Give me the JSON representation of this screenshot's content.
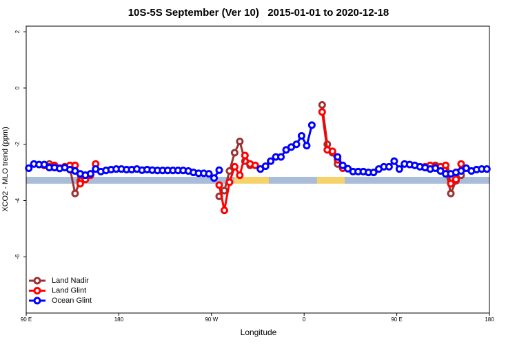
{
  "chart_data": {
    "type": "line",
    "title": "10S-5S September (Ver 10)   2015-01-01 to 2020-12-18",
    "x_label": "Longitude",
    "y_label": "XCO2 - MLO trend (ppm)",
    "xlim": [
      90,
      540
    ],
    "ylim": [
      -8,
      2.2
    ],
    "xticks": [
      {
        "value": 90,
        "label": "90 E"
      },
      180,
      {
        "value": 270,
        "label": "90 W"
      },
      {
        "value": 360,
        "label": "0"
      },
      {
        "value": 450,
        "label": "90 E"
      },
      {
        "value": 540,
        "label": "180"
      }
    ],
    "yticks": [
      2,
      0,
      -2,
      -4,
      -6
    ],
    "legend": "bottom-left",
    "series": [
      {
        "name": "Land Nadir",
        "color": "#993333",
        "x": [
          107.5,
          112.5,
          117.5,
          122.5,
          127.5,
          132.5,
          137.5,
          142.5,
          147.5,
          null,
          277.5,
          282.5,
          287.5,
          292.5,
          297.5,
          302.5,
          307.5,
          null,
          377.5,
          382.5,
          387.5,
          392.5,
          null,
          487.5,
          492.5,
          497.5,
          502.5,
          507.5,
          512.5
        ],
        "values": [
          -2.75,
          -2.7,
          -2.8,
          -2.85,
          -2.8,
          -2.85,
          -3.75,
          -3.3,
          -3.1,
          null,
          -3.85,
          -3.65,
          -2.95,
          -2.3,
          -1.9,
          -2.6,
          -2.75,
          null,
          -0.6,
          -2.0,
          -2.3,
          -2.7,
          null,
          -2.75,
          -2.85,
          -2.9,
          -3.75,
          -3.3,
          -3.1
        ]
      },
      {
        "name": "Land Glint",
        "color": "#ff0000",
        "x": [
          107.5,
          112.5,
          117.5,
          122.5,
          127.5,
          132.5,
          137.5,
          142.5,
          147.5,
          152.5,
          157.5,
          null,
          277.5,
          282.5,
          287.5,
          292.5,
          297.5,
          302.5,
          307.5,
          312.5,
          null,
          377.5,
          382.5,
          387.5,
          392.5,
          397.5,
          null,
          477.5,
          482.5,
          487.5,
          492.5,
          497.5,
          502.5,
          507.5,
          512.5
        ],
        "values": [
          -2.75,
          -2.8,
          -2.75,
          -2.85,
          -2.8,
          -2.75,
          -2.75,
          -3.4,
          -3.25,
          -3.1,
          -2.7,
          null,
          -3.45,
          -4.35,
          -3.35,
          -2.8,
          -3.1,
          -2.4,
          -2.7,
          -2.75,
          null,
          -0.85,
          -2.2,
          -2.25,
          -2.55,
          -2.85,
          null,
          -2.8,
          -2.75,
          -2.8,
          -2.8,
          -2.75,
          -3.4,
          -3.25,
          -2.7
        ]
      },
      {
        "name": "Ocean Glint",
        "color": "#0000ff",
        "x": [
          92.5,
          97.5,
          102.5,
          107.5,
          112.5,
          117.5,
          122.5,
          127.5,
          132.5,
          137.5,
          142.5,
          147.5,
          152.5,
          157.5,
          162.5,
          167.5,
          172.5,
          177.5,
          182.5,
          187.5,
          192.5,
          197.5,
          202.5,
          207.5,
          212.5,
          217.5,
          222.5,
          227.5,
          232.5,
          237.5,
          242.5,
          247.5,
          252.5,
          257.5,
          262.5,
          267.5,
          272.5,
          277.5,
          null,
          317.5,
          322.5,
          327.5,
          332.5,
          337.5,
          342.5,
          347.5,
          352.5,
          357.5,
          362.5,
          367.5,
          null,
          392.5,
          397.5,
          402.5,
          407.5,
          412.5,
          417.5,
          422.5,
          427.5,
          432.5,
          437.5,
          442.5,
          447.5,
          452.5,
          457.5,
          462.5,
          467.5,
          472.5,
          477.5,
          482.5,
          487.5,
          492.5,
          497.5,
          502.5,
          507.5,
          512.5,
          517.5,
          522.5,
          527.5,
          532.5,
          537.5
        ],
        "values": [
          -2.85,
          -2.7,
          -2.72,
          -2.72,
          -2.83,
          -2.83,
          -2.86,
          -2.83,
          -2.9,
          -2.95,
          -3.05,
          -3.1,
          -3.05,
          -2.88,
          -2.97,
          -2.93,
          -2.9,
          -2.88,
          -2.88,
          -2.9,
          -2.9,
          -2.88,
          -2.92,
          -2.9,
          -2.92,
          -2.93,
          -2.93,
          -2.93,
          -2.93,
          -2.93,
          -2.93,
          -2.95,
          -3.0,
          -3.03,
          -3.03,
          -3.05,
          -3.2,
          -2.92,
          null,
          -2.88,
          -2.78,
          -2.6,
          -2.45,
          -2.45,
          -2.2,
          -2.1,
          -2.0,
          -1.7,
          -2.05,
          -1.32,
          null,
          -2.45,
          -2.75,
          -2.87,
          -2.97,
          -2.97,
          -2.97,
          -3.0,
          -3.0,
          -2.88,
          -2.8,
          -2.8,
          -2.6,
          -2.88,
          -2.7,
          -2.72,
          -2.75,
          -2.8,
          -2.83,
          -2.88,
          -2.85,
          -2.95,
          -3.05,
          -3.05,
          -3.0,
          -2.95,
          -2.85,
          -2.95,
          -2.9,
          -2.88,
          -2.88
        ]
      }
    ]
  }
}
